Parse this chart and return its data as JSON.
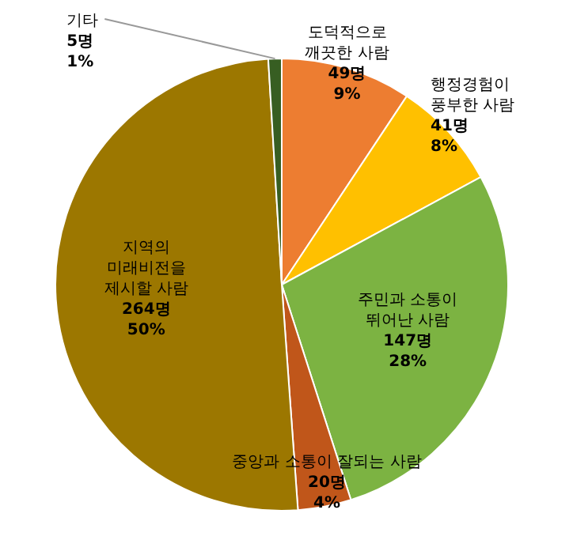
{
  "chart_data": {
    "type": "pie",
    "categories": [
      "도덕적으로 깨끗한 사람",
      "행정경험이 풍부한 사람",
      "주민과 소통이 뛰어난 사람",
      "중앙과 소통이 잘되는 사람",
      "지역의 미래비전을 제시할 사람",
      "기타"
    ],
    "values": [
      49,
      41,
      147,
      20,
      264,
      5
    ],
    "value_labels": [
      "49명\n9%",
      "41명\n8%",
      "147명\n28%",
      "20명\n4%",
      "264명\n50%",
      "5명\n1%"
    ],
    "colors": [
      "#ed7d31",
      "#ffc000",
      "#7cb342",
      "#c0561a",
      "#9c7700",
      "#375e22"
    ]
  }
}
